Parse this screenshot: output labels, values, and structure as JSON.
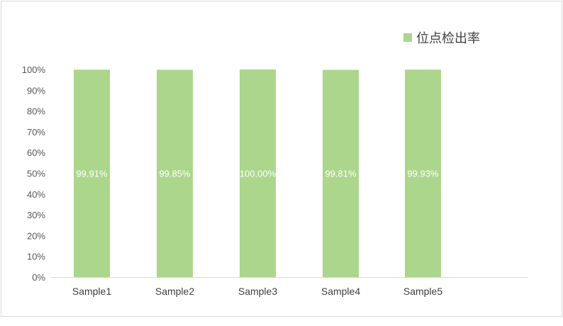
{
  "chart_data": {
    "type": "bar",
    "categories": [
      "Sample1",
      "Sample2",
      "Sample3",
      "Sample4",
      "Sample5"
    ],
    "series": [
      {
        "name": "位点检出率",
        "values": [
          99.91,
          99.85,
          100.0,
          99.81,
          99.93
        ],
        "labels": [
          "99.91%",
          "99.85%",
          "100.00%",
          "99.81%",
          "99.93%"
        ],
        "color": "#acd68c"
      }
    ],
    "yticks": [
      "0%",
      "10%",
      "20%",
      "30%",
      "40%",
      "50%",
      "60%",
      "70%",
      "80%",
      "90%",
      "100%"
    ],
    "ylim": [
      0,
      100
    ],
    "grid": false,
    "legend": "top-right",
    "axis_color": "#d9d9d9"
  }
}
